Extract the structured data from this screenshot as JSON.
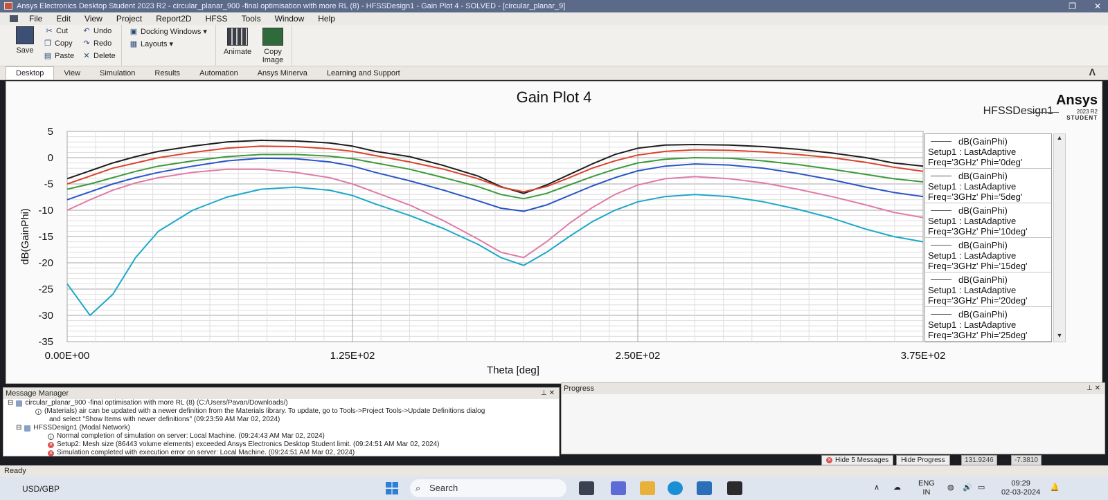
{
  "window": {
    "title": "Ansys Electronics Desktop Student 2023 R2 - circular_planar_900 -final optimisation with more RL (8) - HFSSDesign1 - Gain Plot 4 - SOLVED - [circular_planar_9]",
    "btn_restore": "❐",
    "btn_close": "✕"
  },
  "menu": [
    "File",
    "Edit",
    "View",
    "Project",
    "Report2D",
    "HFSS",
    "Tools",
    "Window",
    "Help"
  ],
  "ribbon": {
    "save": "Save",
    "cut": "Cut",
    "copy": "Copy",
    "paste": "Paste",
    "undo": "Undo",
    "redo": "Redo",
    "delete": "Delete",
    "docking_windows": "Docking Windows",
    "layouts": "Layouts",
    "animate": "Animate",
    "copy_image": "Copy Image"
  },
  "tabs": [
    "Desktop",
    "View",
    "Simulation",
    "Results",
    "Automation",
    "Ansys Minerva",
    "Learning and Support"
  ],
  "plot": {
    "title": "Gain Plot 4",
    "design": "HFSSDesign1",
    "logo_brand": "Ansys",
    "logo_version": "2023 R2",
    "logo_edition": "STUDENT"
  },
  "chart_data": {
    "type": "line",
    "title": "Gain Plot 4",
    "xlabel": "Theta [deg]",
    "ylabel": "dB(GainPhi)",
    "xlim": [
      0,
      375
    ],
    "ylim": [
      -35,
      5
    ],
    "xticks": [
      "0.00E+00",
      "1.25E+02",
      "2.50E+02",
      "3.75E+02"
    ],
    "yticks": [
      "5",
      "0",
      "-5",
      "-10",
      "-15",
      "-20",
      "-25",
      "-30",
      "-35"
    ],
    "grid": true,
    "legend_position": "right",
    "x": [
      0,
      10,
      20,
      30,
      40,
      55,
      70,
      85,
      100,
      115,
      125,
      135,
      150,
      165,
      180,
      190,
      200,
      210,
      220,
      230,
      240,
      250,
      262,
      275,
      290,
      305,
      320,
      335,
      350,
      362,
      375
    ],
    "series": [
      {
        "name": "dB(GainPhi) Setup1 : LastAdaptive Freq='3GHz' Phi='0deg'",
        "color": "#1c1c1c",
        "values": [
          -4,
          -2.5,
          -1,
          0.2,
          1.2,
          2.2,
          3,
          3.3,
          3.2,
          2.8,
          2.2,
          1.2,
          0.2,
          -1.5,
          -3.5,
          -5.5,
          -6.8,
          -5.2,
          -3.2,
          -1.2,
          0.6,
          1.8,
          2.4,
          2.5,
          2.4,
          2.1,
          1.6,
          0.9,
          0,
          -1,
          -1.6
        ]
      },
      {
        "name": "dB(GainPhi) Setup1 : LastAdaptive Freq='3GHz' Phi='5deg'",
        "color": "#d9442c",
        "values": [
          -5,
          -3.5,
          -2,
          -1,
          0,
          1,
          1.8,
          2.2,
          2.1,
          1.7,
          1.2,
          0.4,
          -0.8,
          -2.2,
          -4,
          -5.6,
          -6.5,
          -5.5,
          -3.8,
          -2,
          -0.6,
          0.5,
          1.2,
          1.5,
          1.4,
          1.1,
          0.6,
          0,
          -0.9,
          -1.8,
          -2.6
        ]
      },
      {
        "name": "dB(GainPhi) Setup1 : LastAdaptive Freq='3GHz' Phi='10deg'",
        "color": "#3a9a3a",
        "values": [
          -6,
          -5,
          -3.8,
          -2.6,
          -1.6,
          -0.6,
          0.2,
          0.6,
          0.6,
          0.3,
          -0.2,
          -1,
          -2.2,
          -3.8,
          -5.5,
          -7,
          -7.8,
          -6.8,
          -5.2,
          -3.6,
          -2.2,
          -1,
          -0.3,
          0,
          -0.1,
          -0.6,
          -1.3,
          -2.2,
          -3.2,
          -4,
          -4.6
        ]
      },
      {
        "name": "dB(GainPhi) Setup1 : LastAdaptive Freq='3GHz' Phi='15deg'",
        "color": "#2855c8",
        "values": [
          -8,
          -6.5,
          -5,
          -3.8,
          -2.8,
          -1.6,
          -0.6,
          -0.1,
          -0.2,
          -0.8,
          -1.6,
          -2.8,
          -4.4,
          -6.2,
          -8.2,
          -9.6,
          -10.2,
          -9,
          -7.2,
          -5.4,
          -3.8,
          -2.5,
          -1.6,
          -1.2,
          -1.4,
          -2,
          -3,
          -4.2,
          -5.6,
          -6.6,
          -7.4
        ]
      },
      {
        "name": "dB(GainPhi) Setup1 : LastAdaptive Freq='3GHz' Phi='20deg'",
        "color": "#e07aa8",
        "values": [
          -10,
          -8,
          -6.2,
          -4.8,
          -3.8,
          -2.8,
          -2.2,
          -2.2,
          -2.8,
          -3.8,
          -5,
          -6.6,
          -9,
          -12,
          -15.5,
          -18,
          -19,
          -16,
          -12.5,
          -9.5,
          -7,
          -5.2,
          -4,
          -3.6,
          -4,
          -4.8,
          -6,
          -7.4,
          -9,
          -10.4,
          -11.4
        ]
      },
      {
        "name": "dB(GainPhi) Setup1 : LastAdaptive Freq='3GHz' Phi='25deg'",
        "color": "#1aa8c9",
        "values": [
          -24,
          -30,
          -26,
          -19,
          -14,
          -10,
          -7.5,
          -6,
          -5.6,
          -6.2,
          -7.2,
          -8.8,
          -11,
          -13.5,
          -16.5,
          -19,
          -20.5,
          -18,
          -15,
          -12.2,
          -10,
          -8.4,
          -7.4,
          -7,
          -7.4,
          -8.4,
          -9.8,
          -11.5,
          -13.6,
          -15,
          -16
        ]
      }
    ]
  },
  "legend": [
    {
      "l1": "dB(GainPhi)",
      "l2": "Setup1 : LastAdaptive",
      "l3": "Freq='3GHz' Phi='0deg'"
    },
    {
      "l1": "dB(GainPhi)",
      "l2": "Setup1 : LastAdaptive",
      "l3": "Freq='3GHz' Phi='5deg'"
    },
    {
      "l1": "dB(GainPhi)",
      "l2": "Setup1 : LastAdaptive",
      "l3": "Freq='3GHz' Phi='10deg'"
    },
    {
      "l1": "dB(GainPhi)",
      "l2": "Setup1 : LastAdaptive",
      "l3": "Freq='3GHz' Phi='15deg'"
    },
    {
      "l1": "dB(GainPhi)",
      "l2": "Setup1 : LastAdaptive",
      "l3": "Freq='3GHz' Phi='20deg'"
    },
    {
      "l1": "dB(GainPhi)",
      "l2": "Setup1 : LastAdaptive",
      "l3": "Freq='3GHz' Phi='25deg'"
    }
  ],
  "message_manager": {
    "title": "Message Manager",
    "lines": [
      "circular_planar_900 -final optimisation with more RL (8) (C:/Users/Pavan/Downloads/)",
      "(Materials) air can be updated with a newer definition from the Materials library. To update, go to Tools->Project Tools->Update Definitions dialog",
      "and select \"Show Items with newer definitions\" (09:23:59 AM Mar 02, 2024)",
      "HFSSDesign1 (Modal Network)",
      "Normal completion of simulation on server: Local Machine. (09:24:43 AM Mar 02, 2024)",
      "Setup2: Mesh size (86443 volume elements) exceeded Ansys Electronics Desktop Student limit. (09:24:51 AM Mar 02, 2024)",
      "Simulation completed with execution error on server: Local Machine. (09:24:51 AM Mar 02, 2024)"
    ]
  },
  "progress": {
    "title": "Progress"
  },
  "bottom": {
    "hide_messages": "Hide 5 Messages",
    "hide_progress": "Hide Progress",
    "coord_x": "131.9246",
    "coord_label": "Y1",
    "coord_y": "-7.3810"
  },
  "status": {
    "text": "Ready"
  },
  "taskbar": {
    "currency": "USD/GBP",
    "search": "Search",
    "lang1": "ENG",
    "lang2": "IN",
    "time": "09:29",
    "date": "02-03-2024"
  }
}
